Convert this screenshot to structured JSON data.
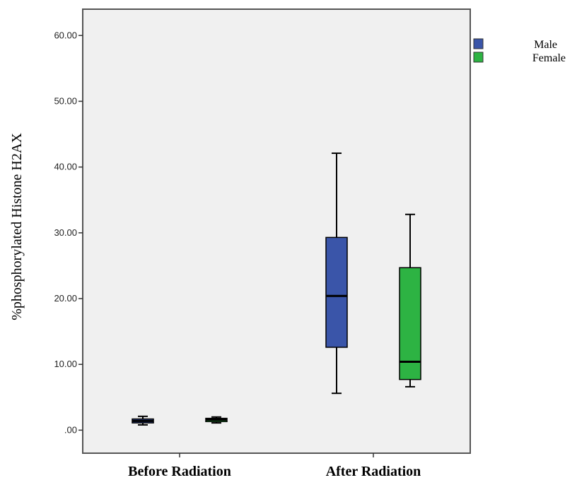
{
  "chart_data": {
    "type": "box",
    "ylabel": "%phosphorylated Histone H2AX",
    "xlabel": "",
    "ylim": [
      -3.5,
      64
    ],
    "yticks": [
      0,
      10,
      20,
      30,
      40,
      50,
      60
    ],
    "ytick_labels": [
      ".00",
      "10.00",
      "20.00",
      "30.00",
      "40.00",
      "50.00",
      "60.00"
    ],
    "categories": [
      "Before Radiation",
      "After Radiation"
    ],
    "legend_position": "top-right",
    "series": [
      {
        "name": "Male",
        "color": "#3a55a9",
        "boxes": [
          {
            "category": "Before Radiation",
            "min": 0.8,
            "q1": 1.1,
            "median": 1.4,
            "q3": 1.7,
            "max": 2.1
          },
          {
            "category": "After Radiation",
            "min": 5.6,
            "q1": 12.6,
            "median": 20.4,
            "q3": 29.3,
            "max": 42.1
          }
        ]
      },
      {
        "name": "Female",
        "color": "#2db343",
        "boxes": [
          {
            "category": "Before Radiation",
            "min": 1.1,
            "q1": 1.3,
            "median": 1.6,
            "q3": 1.8,
            "max": 2.0
          },
          {
            "category": "After Radiation",
            "min": 6.6,
            "q1": 7.7,
            "median": 10.4,
            "q3": 24.7,
            "max": 32.8
          }
        ]
      }
    ],
    "grid": false
  }
}
